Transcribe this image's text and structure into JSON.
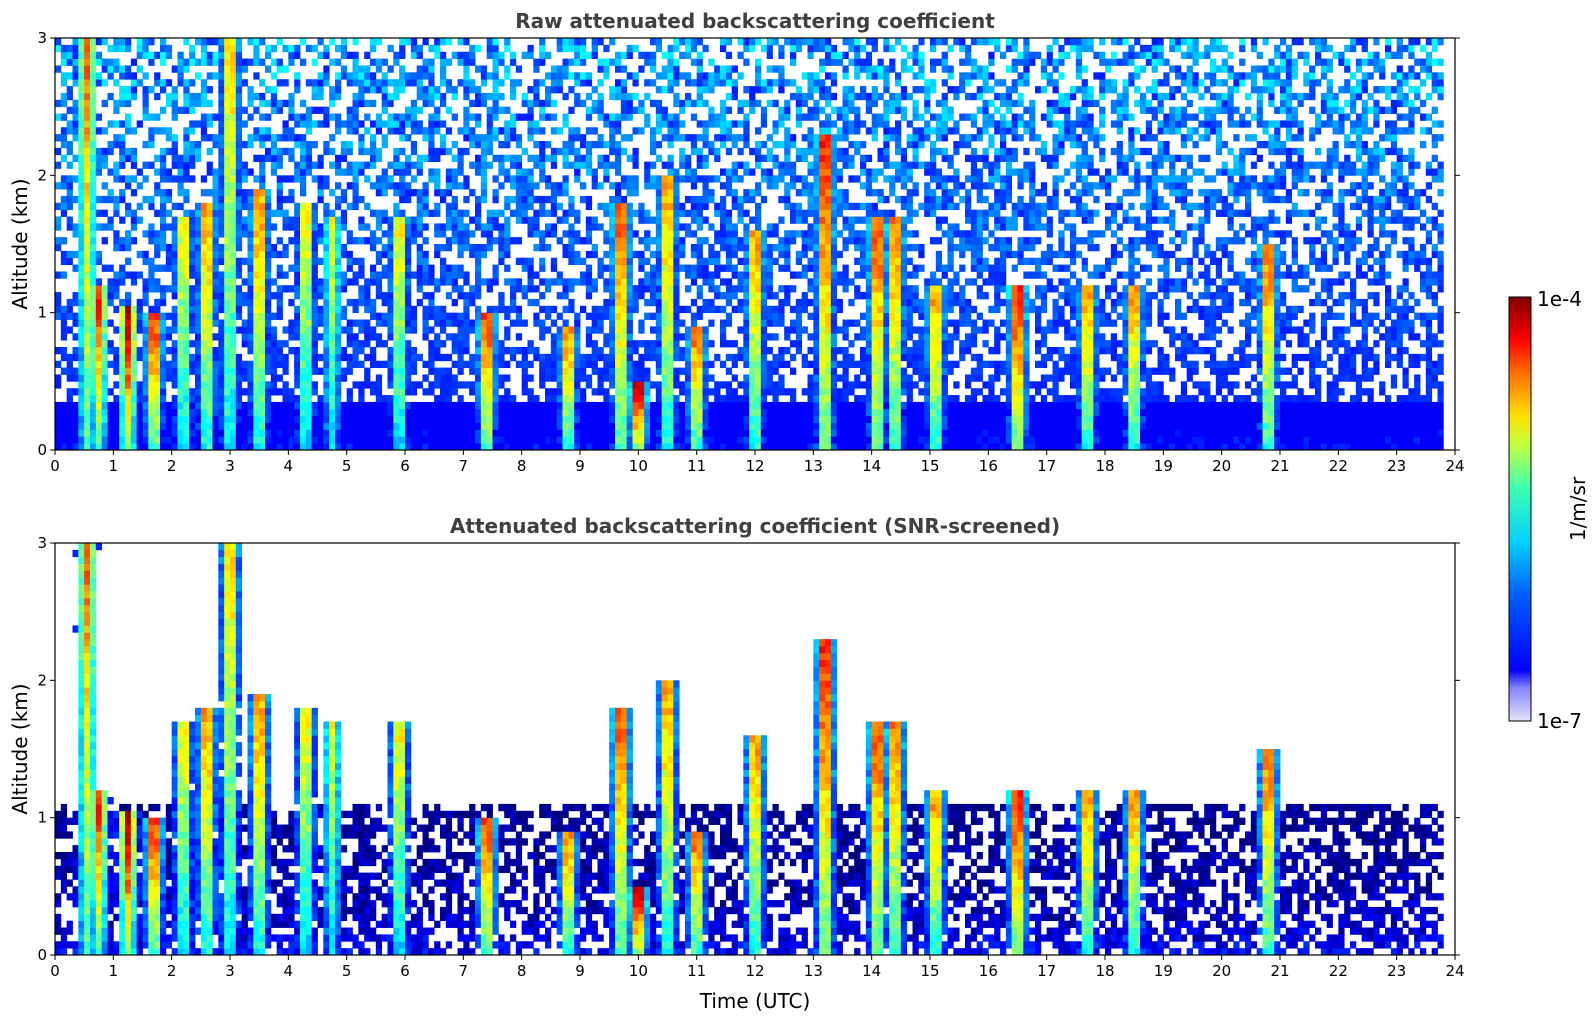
{
  "chart_data": [
    {
      "type": "heatmap",
      "title": "Raw attenuated backscattering coefficient",
      "xlabel": "",
      "ylabel": "Altitude (km)",
      "xlim": [
        0,
        24
      ],
      "ylim": [
        0,
        3
      ],
      "xticks": [
        "0",
        "1",
        "2",
        "3",
        "4",
        "5",
        "6",
        "7",
        "8",
        "9",
        "10",
        "11",
        "12",
        "13",
        "14",
        "15",
        "16",
        "17",
        "18",
        "19",
        "20",
        "21",
        "22",
        "23",
        "24"
      ],
      "yticks": [
        "0",
        "1",
        "2",
        "3"
      ],
      "data_end_hour": 23.8,
      "screened": false,
      "cloud_events": [
        {
          "t": 0.55,
          "h": 3.0,
          "s": 0.8
        },
        {
          "t": 0.75,
          "h": 1.1,
          "s": 0.85
        },
        {
          "t": 1.25,
          "h": 0.95,
          "s": 0.95
        },
        {
          "t": 1.7,
          "h": 0.9,
          "s": 0.9
        },
        {
          "t": 2.2,
          "h": 1.6,
          "s": 0.7
        },
        {
          "t": 2.6,
          "h": 1.7,
          "s": 0.8
        },
        {
          "t": 3.0,
          "h": 3.0,
          "s": 0.75
        },
        {
          "t": 3.5,
          "h": 1.8,
          "s": 0.8
        },
        {
          "t": 4.3,
          "h": 1.7,
          "s": 0.7
        },
        {
          "t": 4.75,
          "h": 1.6,
          "s": 0.6
        },
        {
          "t": 5.9,
          "h": 1.6,
          "s": 0.7
        },
        {
          "t": 7.4,
          "h": 0.9,
          "s": 0.9
        },
        {
          "t": 8.8,
          "h": 0.8,
          "s": 0.8
        },
        {
          "t": 9.7,
          "h": 1.7,
          "s": 0.9
        },
        {
          "t": 10.0,
          "h": 0.4,
          "s": 1.0
        },
        {
          "t": 10.5,
          "h": 1.9,
          "s": 0.8
        },
        {
          "t": 11.0,
          "h": 0.8,
          "s": 0.85
        },
        {
          "t": 12.0,
          "h": 1.5,
          "s": 0.8
        },
        {
          "t": 13.2,
          "h": 2.2,
          "s": 0.95
        },
        {
          "t": 14.1,
          "h": 1.6,
          "s": 0.9
        },
        {
          "t": 14.4,
          "h": 1.6,
          "s": 0.85
        },
        {
          "t": 15.1,
          "h": 1.1,
          "s": 0.8
        },
        {
          "t": 16.5,
          "h": 1.1,
          "s": 0.95
        },
        {
          "t": 17.7,
          "h": 1.1,
          "s": 0.8
        },
        {
          "t": 18.5,
          "h": 1.1,
          "s": 0.8
        },
        {
          "t": 20.8,
          "h": 1.4,
          "s": 0.85
        }
      ]
    },
    {
      "type": "heatmap",
      "title": "Attenuated backscattering coefficient (SNR-screened)",
      "xlabel": "Time (UTC)",
      "ylabel": "Altitude (km)",
      "xlim": [
        0,
        24
      ],
      "ylim": [
        0,
        3
      ],
      "xticks": [
        "0",
        "1",
        "2",
        "3",
        "4",
        "5",
        "6",
        "7",
        "8",
        "9",
        "10",
        "11",
        "12",
        "13",
        "14",
        "15",
        "16",
        "17",
        "18",
        "19",
        "20",
        "21",
        "22",
        "23",
        "24"
      ],
      "yticks": [
        "0",
        "1",
        "2",
        "3"
      ],
      "data_end_hour": 23.8,
      "screened": true
    }
  ],
  "colorbar": {
    "label": "1/m/sr",
    "max_label": "1e-4",
    "min_label": "1e-7",
    "colormap": "jet"
  }
}
